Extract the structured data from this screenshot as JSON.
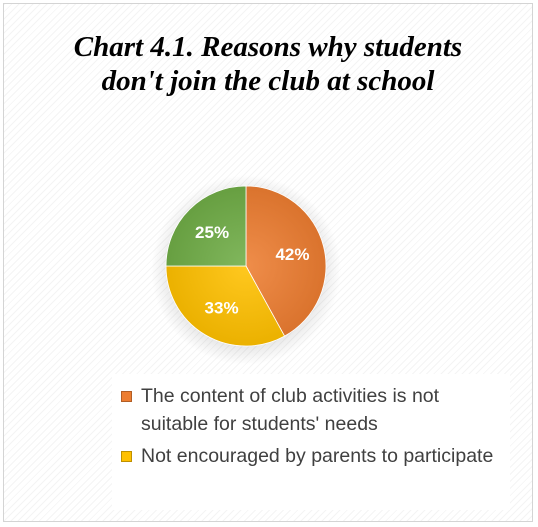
{
  "chart_data": {
    "type": "pie",
    "title_lines": [
      "Chart 4.1. Reasons why students",
      "don't join the club at school"
    ],
    "slices": [
      {
        "label": "The content of club activities is not suitable for students' needs",
        "value": 42,
        "data_label": "42%",
        "color": "#ED7D31"
      },
      {
        "label": "Not encouraged by parents to participate",
        "value": 33,
        "data_label": "33%",
        "color": "#FFC000"
      },
      {
        "label": "",
        "value": 25,
        "data_label": "25%",
        "color": "#70AD47"
      }
    ],
    "legend_placement": "bottom-right"
  },
  "legend": [
    {
      "label": "The content of club activities is not suitable for students' needs",
      "color": "#ED7D31"
    },
    {
      "label": "Not encouraged by parents to participate",
      "color": "#FFC000"
    }
  ]
}
